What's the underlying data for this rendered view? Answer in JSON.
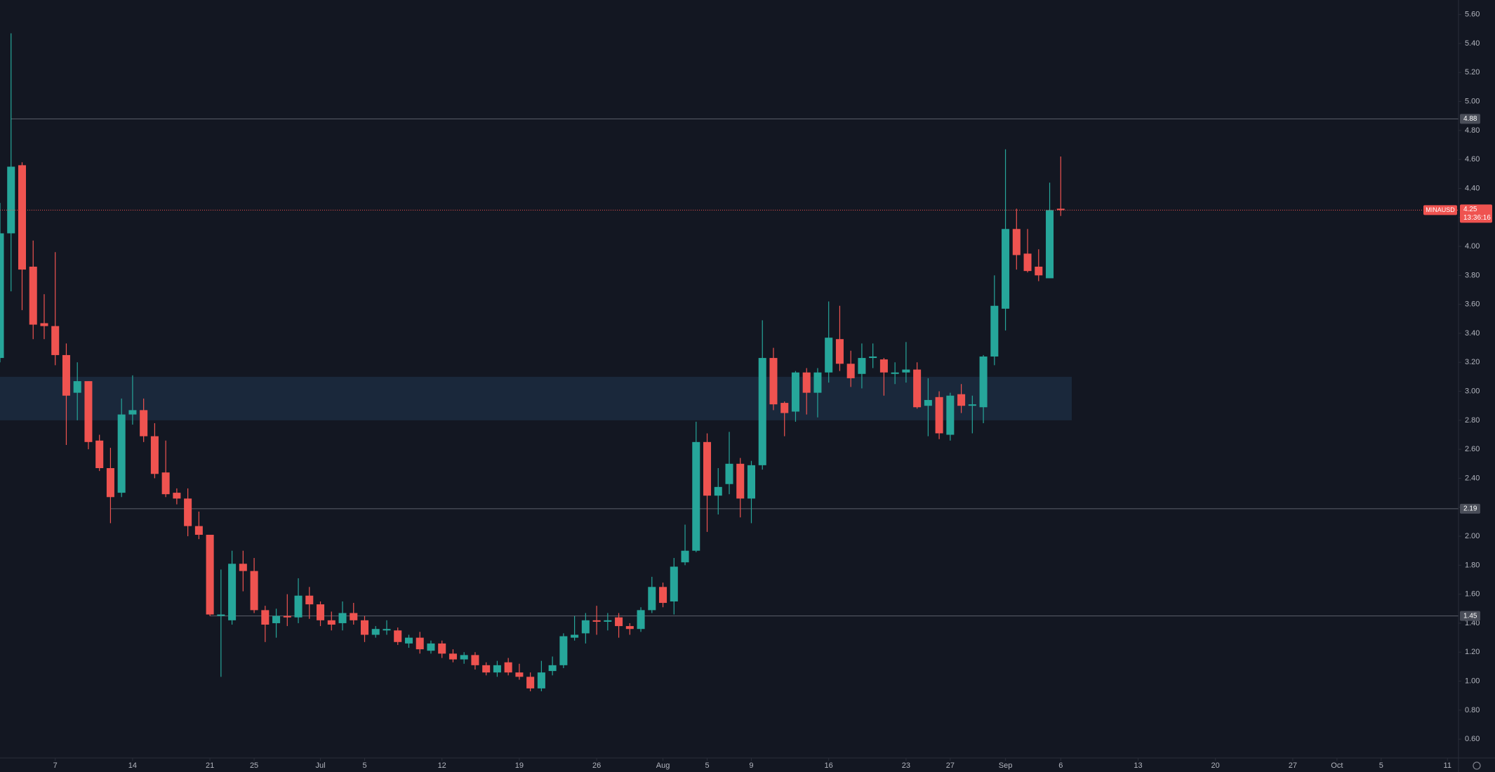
{
  "chart_data": {
    "type": "candlestick",
    "symbol": "MINAUSD",
    "up_color": "#26a69a",
    "down_color": "#ef5350",
    "x": [
      "Jun 2",
      "Jun 3",
      "Jun 4",
      "Jun 5",
      "Jun 6",
      "Jun 7",
      "Jun 8",
      "Jun 9",
      "Jun 10",
      "Jun 11",
      "Jun 12",
      "Jun 13",
      "Jun 14",
      "Jun 15",
      "Jun 16",
      "Jun 17",
      "Jun 18",
      "Jun 19",
      "Jun 20",
      "Jun 21",
      "Jun 22",
      "Jun 23",
      "Jun 24",
      "Jun 25",
      "Jun 26",
      "Jun 27",
      "Jun 28",
      "Jun 29",
      "Jun 30",
      "Jul 1",
      "Jul 2",
      "Jul 3",
      "Jul 4",
      "Jul 5",
      "Jul 6",
      "Jul 7",
      "Jul 8",
      "Jul 9",
      "Jul 10",
      "Jul 11",
      "Jul 12",
      "Jul 13",
      "Jul 14",
      "Jul 15",
      "Jul 16",
      "Jul 17",
      "Jul 18",
      "Jul 19",
      "Jul 20",
      "Jul 21",
      "Jul 22",
      "Jul 23",
      "Jul 24",
      "Jul 25",
      "Jul 26",
      "Jul 27",
      "Jul 28",
      "Jul 29",
      "Jul 30",
      "Jul 31",
      "Aug 1",
      "Aug 2",
      "Aug 3",
      "Aug 4",
      "Aug 5",
      "Aug 6",
      "Aug 7",
      "Aug 8",
      "Aug 9",
      "Aug 10",
      "Aug 11",
      "Aug 12",
      "Aug 13",
      "Aug 14",
      "Aug 15",
      "Aug 16",
      "Aug 17",
      "Aug 18",
      "Aug 19",
      "Aug 20",
      "Aug 21",
      "Aug 22",
      "Aug 23",
      "Aug 24",
      "Aug 25",
      "Aug 26",
      "Aug 27",
      "Aug 28",
      "Aug 29",
      "Aug 30",
      "Aug 31",
      "Sep 1",
      "Sep 2",
      "Sep 3",
      "Sep 4",
      "Sep 5",
      "Sep 6"
    ],
    "open": [
      3.23,
      4.09,
      4.56,
      3.86,
      3.47,
      3.45,
      3.25,
      2.99,
      3.07,
      2.66,
      2.47,
      2.3,
      2.84,
      2.87,
      2.69,
      2.44,
      2.3,
      2.26,
      2.07,
      2.01,
      1.45,
      1.42,
      1.81,
      1.76,
      1.49,
      1.4,
      1.45,
      1.44,
      1.59,
      1.53,
      1.42,
      1.4,
      1.47,
      1.42,
      1.32,
      1.35,
      1.35,
      1.26,
      1.3,
      1.21,
      1.26,
      1.19,
      1.15,
      1.18,
      1.11,
      1.06,
      1.13,
      1.06,
      1.03,
      0.95,
      1.07,
      1.11,
      1.3,
      1.33,
      1.42,
      1.41,
      1.44,
      1.38,
      1.36,
      1.49,
      1.65,
      1.55,
      1.82,
      1.9,
      2.65,
      2.28,
      2.36,
      2.5,
      2.26,
      2.49,
      3.23,
      2.92,
      2.86,
      3.13,
      2.99,
      3.13,
      3.36,
      3.19,
      3.12,
      3.23,
      3.22,
      3.12,
      3.13,
      3.15,
      2.9,
      2.96,
      2.7,
      2.98,
      2.9,
      2.89,
      3.24,
      3.57,
      4.12,
      3.95,
      3.86,
      3.78,
      4.26
    ],
    "high": [
      4.3,
      5.47,
      4.58,
      4.04,
      3.67,
      3.96,
      3.33,
      3.2,
      3.07,
      2.7,
      2.61,
      2.95,
      3.11,
      2.95,
      2.78,
      2.66,
      2.33,
      2.33,
      2.17,
      2.01,
      1.77,
      1.9,
      1.9,
      1.85,
      1.52,
      1.5,
      1.6,
      1.71,
      1.65,
      1.55,
      1.48,
      1.55,
      1.54,
      1.45,
      1.38,
      1.42,
      1.37,
      1.32,
      1.34,
      1.28,
      1.28,
      1.22,
      1.2,
      1.2,
      1.13,
      1.14,
      1.16,
      1.12,
      1.06,
      1.14,
      1.17,
      1.33,
      1.45,
      1.47,
      1.52,
      1.47,
      1.47,
      1.4,
      1.51,
      1.72,
      1.68,
      1.85,
      2.08,
      2.79,
      2.71,
      2.47,
      2.72,
      2.54,
      2.52,
      3.49,
      3.3,
      2.93,
      3.14,
      3.16,
      3.16,
      3.62,
      3.59,
      3.28,
      3.33,
      3.33,
      3.23,
      3.2,
      3.34,
      3.2,
      3.09,
      3.0,
      2.99,
      3.05,
      2.97,
      3.25,
      3.8,
      4.67,
      4.26,
      4.12,
      3.98,
      4.44,
      4.62
    ],
    "low": [
      3.2,
      3.69,
      3.56,
      3.36,
      3.36,
      3.18,
      2.63,
      2.8,
      2.6,
      2.45,
      2.09,
      2.27,
      2.77,
      2.65,
      2.4,
      2.27,
      2.22,
      2.0,
      1.98,
      1.45,
      1.03,
      1.39,
      1.62,
      1.47,
      1.27,
      1.3,
      1.38,
      1.4,
      1.43,
      1.38,
      1.35,
      1.35,
      1.39,
      1.27,
      1.3,
      1.32,
      1.25,
      1.23,
      1.19,
      1.19,
      1.16,
      1.13,
      1.12,
      1.08,
      1.04,
      1.03,
      1.04,
      1.01,
      0.93,
      0.93,
      1.04,
      1.09,
      1.28,
      1.26,
      1.32,
      1.35,
      1.3,
      1.32,
      1.34,
      1.47,
      1.51,
      1.46,
      1.8,
      1.89,
      2.03,
      2.15,
      2.29,
      2.13,
      2.09,
      2.46,
      2.87,
      2.69,
      2.79,
      2.84,
      2.82,
      3.06,
      3.14,
      3.03,
      3.02,
      3.16,
      2.97,
      3.05,
      3.06,
      2.88,
      2.69,
      2.67,
      2.66,
      2.85,
      2.71,
      2.78,
      3.18,
      3.42,
      3.84,
      3.82,
      3.76,
      3.78,
      4.21
    ],
    "close": [
      4.09,
      4.55,
      3.84,
      3.46,
      3.45,
      3.25,
      2.97,
      3.07,
      2.65,
      2.47,
      2.27,
      2.84,
      2.87,
      2.69,
      2.43,
      2.29,
      2.26,
      2.07,
      2.01,
      1.46,
      1.46,
      1.81,
      1.76,
      1.49,
      1.39,
      1.45,
      1.44,
      1.59,
      1.53,
      1.42,
      1.39,
      1.47,
      1.42,
      1.32,
      1.36,
      1.36,
      1.27,
      1.3,
      1.22,
      1.26,
      1.19,
      1.15,
      1.18,
      1.11,
      1.06,
      1.11,
      1.06,
      1.03,
      0.95,
      1.06,
      1.11,
      1.31,
      1.32,
      1.42,
      1.41,
      1.42,
      1.38,
      1.36,
      1.49,
      1.65,
      1.54,
      1.79,
      1.9,
      2.65,
      2.28,
      2.34,
      2.5,
      2.26,
      2.49,
      3.23,
      2.91,
      2.85,
      3.13,
      2.99,
      3.13,
      3.37,
      3.19,
      3.09,
      3.23,
      3.24,
      3.13,
      3.13,
      3.15,
      2.89,
      2.94,
      2.71,
      2.97,
      2.9,
      2.91,
      3.24,
      3.59,
      4.12,
      3.94,
      3.83,
      3.8,
      4.25,
      4.25
    ],
    "xlim": [
      "Jun 2",
      "Oct 12"
    ],
    "xticks": [
      {
        "value": "Jun 7",
        "label": "7"
      },
      {
        "value": "Jun 14",
        "label": "14"
      },
      {
        "value": "Jun 21",
        "label": "21"
      },
      {
        "value": "Jun 25",
        "label": "25"
      },
      {
        "value": "Jul 1",
        "label": "Jul"
      },
      {
        "value": "Jul 5",
        "label": "5"
      },
      {
        "value": "Jul 12",
        "label": "12"
      },
      {
        "value": "Jul 19",
        "label": "19"
      },
      {
        "value": "Jul 26",
        "label": "26"
      },
      {
        "value": "Aug 1",
        "label": "Aug"
      },
      {
        "value": "Aug 5",
        "label": "5"
      },
      {
        "value": "Aug 9",
        "label": "9"
      },
      {
        "value": "Aug 16",
        "label": "16"
      },
      {
        "value": "Aug 23",
        "label": "23"
      },
      {
        "value": "Aug 27",
        "label": "27"
      },
      {
        "value": "Sep 1",
        "label": "Sep"
      },
      {
        "value": "Sep 6",
        "label": "6"
      },
      {
        "value": "Sep 13",
        "label": "13"
      },
      {
        "value": "Sep 20",
        "label": "20"
      },
      {
        "value": "Sep 27",
        "label": "27"
      },
      {
        "value": "Oct 1",
        "label": "Oct"
      },
      {
        "value": "Oct 5",
        "label": "5"
      },
      {
        "value": "Oct 11",
        "label": "11"
      }
    ],
    "ylim": [
      0.47,
      5.7
    ],
    "yticks": [
      {
        "value": 0.6,
        "label": "0.60"
      },
      {
        "value": 0.8,
        "label": "0.80"
      },
      {
        "value": 1.0,
        "label": "1.00"
      },
      {
        "value": 1.2,
        "label": "1.20"
      },
      {
        "value": 1.4,
        "label": "1.40"
      },
      {
        "value": 1.6,
        "label": "1.60"
      },
      {
        "value": 1.8,
        "label": "1.80"
      },
      {
        "value": 2.0,
        "label": "2.00"
      },
      {
        "value": 2.2,
        "label": "2.20"
      },
      {
        "value": 2.4,
        "label": "2.40"
      },
      {
        "value": 2.6,
        "label": "2.60"
      },
      {
        "value": 2.8,
        "label": "2.80"
      },
      {
        "value": 3.0,
        "label": "3.00"
      },
      {
        "value": 3.2,
        "label": "3.20"
      },
      {
        "value": 3.4,
        "label": "3.40"
      },
      {
        "value": 3.6,
        "label": "3.60"
      },
      {
        "value": 3.8,
        "label": "3.80"
      },
      {
        "value": 4.0,
        "label": "4.00"
      },
      {
        "value": 4.2,
        "label": "4.20"
      },
      {
        "value": 4.4,
        "label": "4.40"
      },
      {
        "value": 4.6,
        "label": "4.60"
      },
      {
        "value": 4.8,
        "label": "4.80"
      },
      {
        "value": 5.0,
        "label": "5.00"
      },
      {
        "value": 5.2,
        "label": "5.20"
      },
      {
        "value": 5.4,
        "label": "5.40"
      },
      {
        "value": 5.6,
        "label": "5.60"
      }
    ],
    "levels": [
      {
        "value": 4.88,
        "label": "4.88",
        "from": "Jun 3"
      },
      {
        "value": 2.19,
        "label": "2.19",
        "from": "Jun 12"
      },
      {
        "value": 1.45,
        "label": "1.45",
        "from": "Jun 21"
      }
    ],
    "zone": {
      "ylim": [
        2.8,
        3.1
      ],
      "xlim": [
        "Jun 2",
        "Sep 7"
      ]
    },
    "last_price": {
      "value": 4.25,
      "label": "4.25"
    },
    "countdown": "13:36:16"
  }
}
